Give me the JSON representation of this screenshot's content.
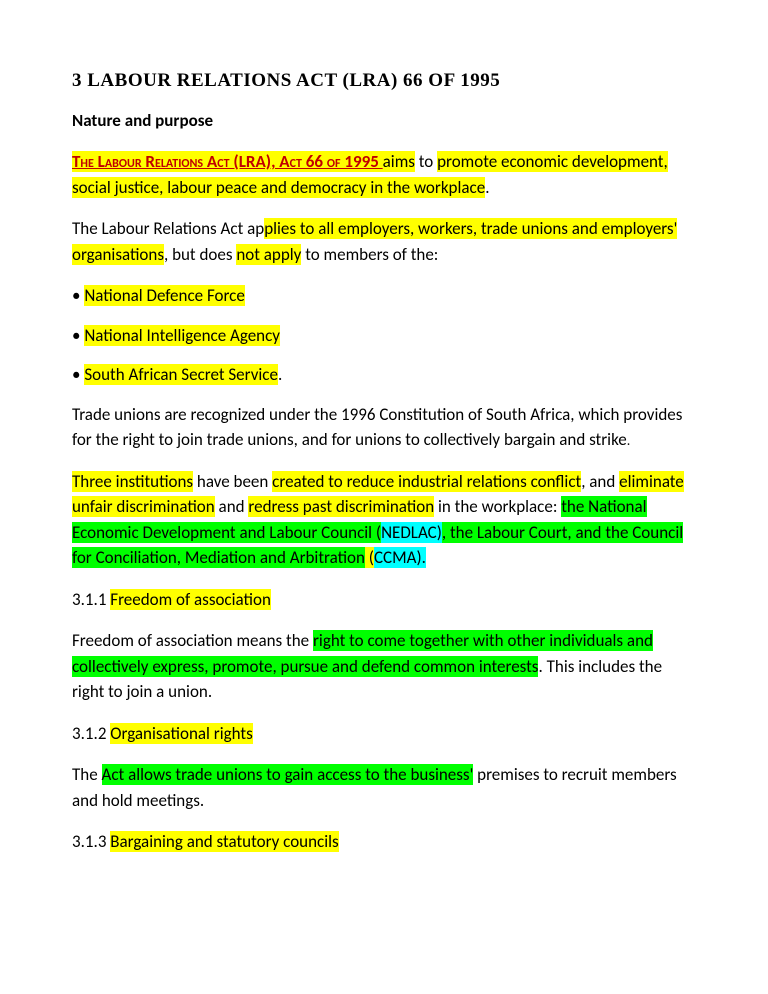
{
  "title": "3 LABOUR RELATIONS ACT (LRA) 66 OF 1995",
  "subheading": "Nature and purpose",
  "p1": {
    "s1": "The Labour Relations Act (LRA), Act 66 of 1995 ",
    "s2": "aims",
    "s3": " to ",
    "s4": "promote economic development, social justice, labour peace and democracy in the workplace",
    "s5": "."
  },
  "p2": {
    "s1": " The Labour Relations Act ap",
    "s2": "plies to all employers, workers, trade unions and employers' organisations",
    "s3": ", but does ",
    "s4": "not apply",
    "s5": " to members of the:"
  },
  "b1": {
    "dot": "• ",
    "t": "National Defence Force"
  },
  "b2": {
    "dot": "• ",
    "t": "National Intelligence Agency"
  },
  "b3": {
    "dot": " • ",
    "t": "South African Secret Service",
    "s2": "."
  },
  "p3": "Trade unions are recognized under the 1996 Constitution of South Africa, which provides for the right to join trade unions, and for unions to collectively bargain and strike",
  "p3end": ".",
  "p4": {
    "s1": "Three institutions",
    "s2": " have been ",
    "s3": "created to reduce industrial relations conflict",
    "s4": ", and ",
    "s5": "eliminate unfair discrimination",
    "s6": " and ",
    "s7": "redress past discrimination",
    "s8": " in the workplace: ",
    "s9": "the National Economic Development and Labour Council (",
    "s10": "NEDLAC)",
    "s11": ", ",
    "s12": "the Labour Court, and the Council for Conciliation, Mediation and Arbitration",
    "s13": " (",
    "s14": "CCMA)."
  },
  "sec1": {
    "num": "3.1.1 ",
    "t": "Freedom of association"
  },
  "p5": {
    "s1": " Freedom of association means the ",
    "s2": "right to come together with other individuals and collectively express, promote, pursue and defend common interests",
    "s3": ". This includes the right to join a union."
  },
  "sec2": {
    "num": "3.1.2 ",
    "t": "Organisational rights"
  },
  "p6": {
    "s1": " The ",
    "s2": "Act allows trade unions to gain access to the business'",
    "s3": " premises to recruit members and hold meetings."
  },
  "sec3": {
    "num": "3.1.3 ",
    "t": "Bargaining and statutory councils"
  }
}
